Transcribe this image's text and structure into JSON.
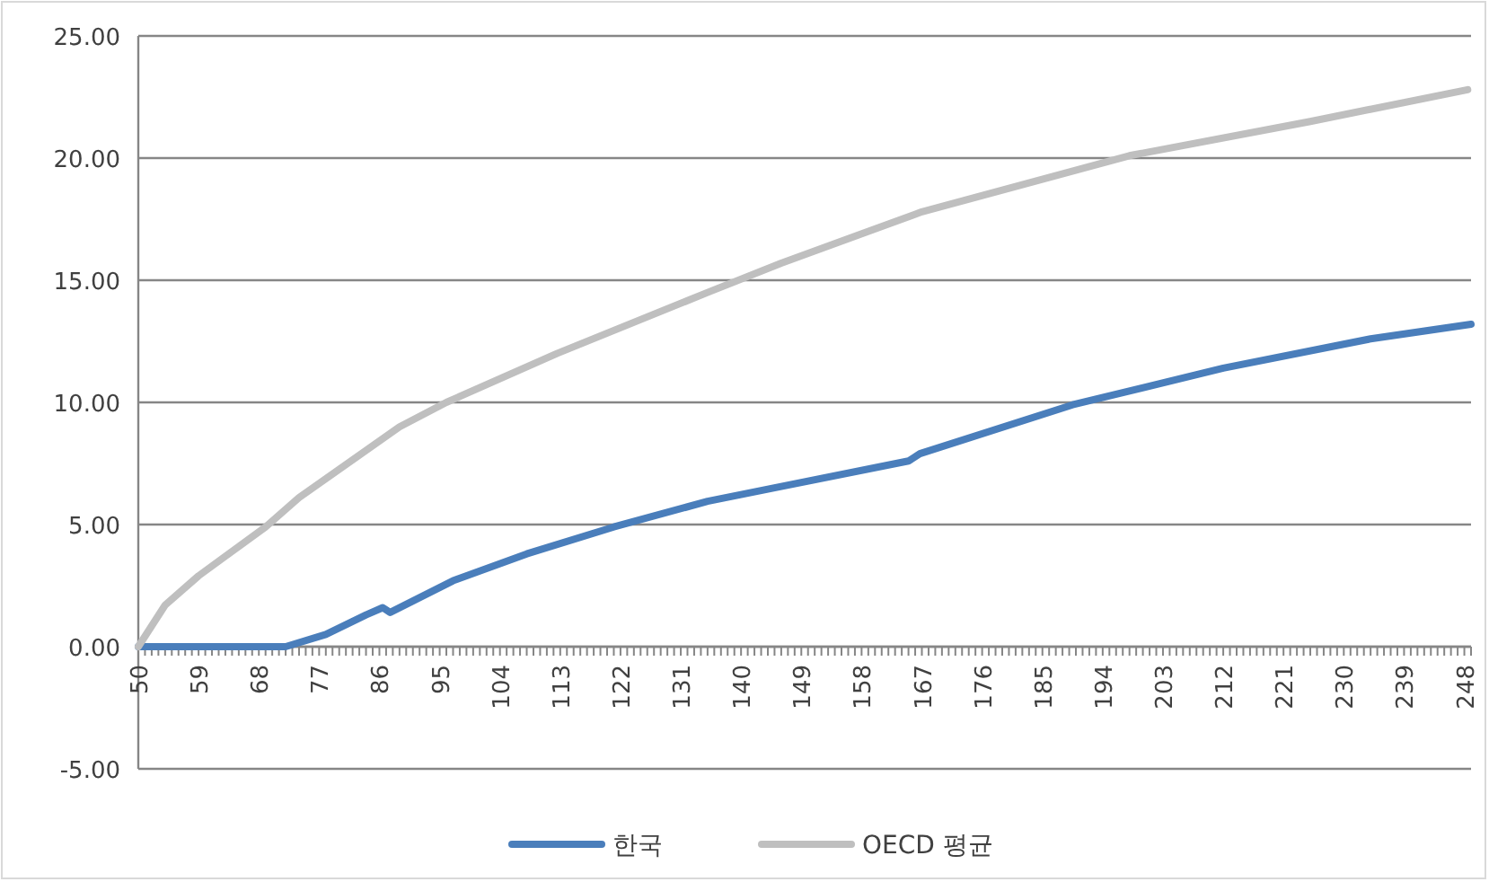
{
  "chart_data": {
    "type": "line",
    "xlim": [
      50,
      249
    ],
    "xticks": [
      50,
      59,
      68,
      77,
      86,
      95,
      104,
      113,
      122,
      131,
      140,
      149,
      158,
      167,
      176,
      185,
      194,
      203,
      212,
      221,
      230,
      239,
      248
    ],
    "ylim": [
      -5,
      25
    ],
    "yticks": [
      {
        "value": -5,
        "label": "-5.00"
      },
      {
        "value": 0,
        "label": "0.00"
      },
      {
        "value": 5,
        "label": "5.00"
      },
      {
        "value": 10,
        "label": "10.00"
      },
      {
        "value": 15,
        "label": "15.00"
      },
      {
        "value": 20,
        "label": "20.00"
      },
      {
        "value": 25,
        "label": "25.00"
      }
    ],
    "grid": "y",
    "legend": "bottom",
    "marker": "none",
    "line_style": "solid",
    "series": [
      {
        "name": "한국",
        "color": "#4a7ebb",
        "x": [
          50,
          72,
          78,
          84,
          86.5,
          87.6,
          97,
          108,
          121,
          135,
          145,
          165,
          166.7,
          189.5,
          212,
          234,
          249
        ],
        "values": [
          0,
          0,
          0.5,
          1.3,
          1.6,
          1.4,
          2.7,
          3.8,
          4.9,
          5.95,
          6.5,
          7.6,
          7.9,
          9.9,
          11.4,
          12.6,
          13.2
        ]
      },
      {
        "name": "OECD 평균",
        "color": "#bfbfbf",
        "x": [
          50,
          54,
          59,
          69,
          74,
          89,
          96,
          112.5,
          135,
          146,
          167,
          198,
          225,
          248.5
        ],
        "values": [
          0,
          1.7,
          2.9,
          4.9,
          6.1,
          9.0,
          10.0,
          12.0,
          14.5,
          15.7,
          17.8,
          20.1,
          21.5,
          22.8
        ]
      }
    ]
  }
}
